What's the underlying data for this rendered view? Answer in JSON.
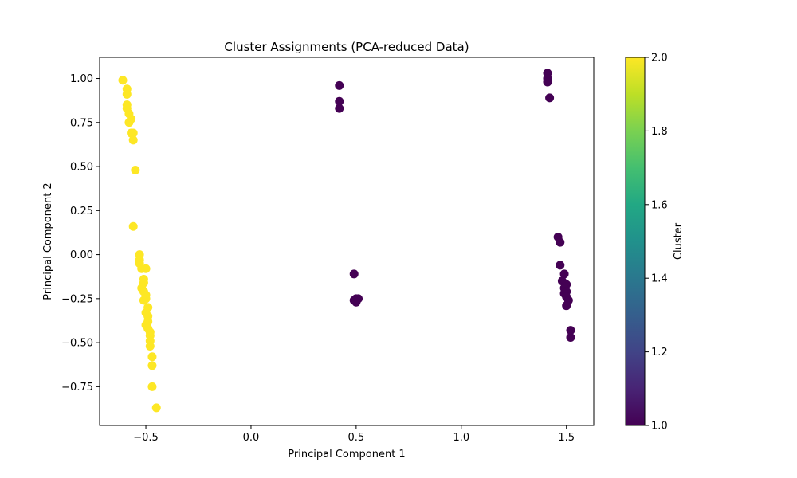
{
  "chart_data": {
    "type": "scatter",
    "title": "Cluster Assignments (PCA-reduced Data)",
    "xlabel": "Principal Component 1",
    "ylabel": "Principal Component 2",
    "xlim": [
      -0.72,
      1.63
    ],
    "ylim": [
      -0.97,
      1.12
    ],
    "xticks": [
      -0.5,
      0.0,
      0.5,
      1.0,
      1.5
    ],
    "xtick_labels": [
      "−0.5",
      "0.0",
      "0.5",
      "1.0",
      "1.5"
    ],
    "yticks": [
      -0.75,
      -0.5,
      -0.25,
      0.0,
      0.25,
      0.5,
      0.75,
      1.0
    ],
    "ytick_labels": [
      "−0.75",
      "−0.50",
      "−0.25",
      "0.00",
      "0.25",
      "0.50",
      "0.75",
      "1.00"
    ],
    "grid": false,
    "colorbar": {
      "label": "Cluster",
      "range": [
        1.0,
        2.0
      ],
      "colormap": "viridis",
      "ticks": [
        1.0,
        1.2,
        1.4,
        1.6,
        1.8,
        2.0
      ],
      "tick_labels": [
        "1.0",
        "1.2",
        "1.4",
        "1.6",
        "1.8",
        "2.0"
      ]
    },
    "colors": {
      "cluster_1": "#440154",
      "cluster_2": "#fde725"
    },
    "points": [
      {
        "x": -0.61,
        "y": 0.99,
        "cluster": 2
      },
      {
        "x": -0.59,
        "y": 0.94,
        "cluster": 2
      },
      {
        "x": -0.59,
        "y": 0.91,
        "cluster": 2
      },
      {
        "x": -0.59,
        "y": 0.85,
        "cluster": 2
      },
      {
        "x": -0.59,
        "y": 0.83,
        "cluster": 2
      },
      {
        "x": -0.58,
        "y": 0.8,
        "cluster": 2
      },
      {
        "x": -0.57,
        "y": 0.77,
        "cluster": 2
      },
      {
        "x": -0.58,
        "y": 0.75,
        "cluster": 2
      },
      {
        "x": -0.57,
        "y": 0.69,
        "cluster": 2
      },
      {
        "x": -0.56,
        "y": 0.69,
        "cluster": 2
      },
      {
        "x": -0.56,
        "y": 0.65,
        "cluster": 2
      },
      {
        "x": -0.55,
        "y": 0.48,
        "cluster": 2
      },
      {
        "x": -0.56,
        "y": 0.16,
        "cluster": 2
      },
      {
        "x": -0.53,
        "y": 0.0,
        "cluster": 2
      },
      {
        "x": -0.53,
        "y": -0.03,
        "cluster": 2
      },
      {
        "x": -0.53,
        "y": -0.05,
        "cluster": 2
      },
      {
        "x": -0.52,
        "y": -0.08,
        "cluster": 2
      },
      {
        "x": -0.5,
        "y": -0.08,
        "cluster": 2
      },
      {
        "x": -0.51,
        "y": -0.14,
        "cluster": 2
      },
      {
        "x": -0.51,
        "y": -0.16,
        "cluster": 2
      },
      {
        "x": -0.52,
        "y": -0.19,
        "cluster": 2
      },
      {
        "x": -0.51,
        "y": -0.21,
        "cluster": 2
      },
      {
        "x": -0.5,
        "y": -0.23,
        "cluster": 2
      },
      {
        "x": -0.5,
        "y": -0.25,
        "cluster": 2
      },
      {
        "x": -0.51,
        "y": -0.26,
        "cluster": 2
      },
      {
        "x": -0.49,
        "y": -0.3,
        "cluster": 2
      },
      {
        "x": -0.5,
        "y": -0.33,
        "cluster": 2
      },
      {
        "x": -0.49,
        "y": -0.35,
        "cluster": 2
      },
      {
        "x": -0.49,
        "y": -0.38,
        "cluster": 2
      },
      {
        "x": -0.5,
        "y": -0.4,
        "cluster": 2
      },
      {
        "x": -0.49,
        "y": -0.42,
        "cluster": 2
      },
      {
        "x": -0.48,
        "y": -0.44,
        "cluster": 2
      },
      {
        "x": -0.48,
        "y": -0.46,
        "cluster": 2
      },
      {
        "x": -0.48,
        "y": -0.49,
        "cluster": 2
      },
      {
        "x": -0.48,
        "y": -0.52,
        "cluster": 2
      },
      {
        "x": -0.47,
        "y": -0.58,
        "cluster": 2
      },
      {
        "x": -0.47,
        "y": -0.63,
        "cluster": 2
      },
      {
        "x": -0.47,
        "y": -0.75,
        "cluster": 2
      },
      {
        "x": -0.45,
        "y": -0.87,
        "cluster": 2
      },
      {
        "x": 0.42,
        "y": 0.96,
        "cluster": 1
      },
      {
        "x": 0.42,
        "y": 0.87,
        "cluster": 1
      },
      {
        "x": 0.42,
        "y": 0.83,
        "cluster": 1
      },
      {
        "x": 0.49,
        "y": -0.11,
        "cluster": 1
      },
      {
        "x": 0.5,
        "y": -0.25,
        "cluster": 1
      },
      {
        "x": 0.49,
        "y": -0.26,
        "cluster": 1
      },
      {
        "x": 0.5,
        "y": -0.27,
        "cluster": 1
      },
      {
        "x": 0.51,
        "y": -0.25,
        "cluster": 1
      },
      {
        "x": 1.41,
        "y": 1.03,
        "cluster": 1
      },
      {
        "x": 1.41,
        "y": 1.0,
        "cluster": 1
      },
      {
        "x": 1.41,
        "y": 0.98,
        "cluster": 1
      },
      {
        "x": 1.42,
        "y": 0.89,
        "cluster": 1
      },
      {
        "x": 1.46,
        "y": 0.1,
        "cluster": 1
      },
      {
        "x": 1.47,
        "y": 0.07,
        "cluster": 1
      },
      {
        "x": 1.47,
        "y": -0.06,
        "cluster": 1
      },
      {
        "x": 1.49,
        "y": -0.11,
        "cluster": 1
      },
      {
        "x": 1.48,
        "y": -0.15,
        "cluster": 1
      },
      {
        "x": 1.5,
        "y": -0.17,
        "cluster": 1
      },
      {
        "x": 1.49,
        "y": -0.19,
        "cluster": 1
      },
      {
        "x": 1.5,
        "y": -0.21,
        "cluster": 1
      },
      {
        "x": 1.49,
        "y": -0.22,
        "cluster": 1
      },
      {
        "x": 1.5,
        "y": -0.24,
        "cluster": 1
      },
      {
        "x": 1.51,
        "y": -0.26,
        "cluster": 1
      },
      {
        "x": 1.5,
        "y": -0.29,
        "cluster": 1
      },
      {
        "x": 1.52,
        "y": -0.43,
        "cluster": 1
      },
      {
        "x": 1.52,
        "y": -0.47,
        "cluster": 1
      }
    ]
  }
}
